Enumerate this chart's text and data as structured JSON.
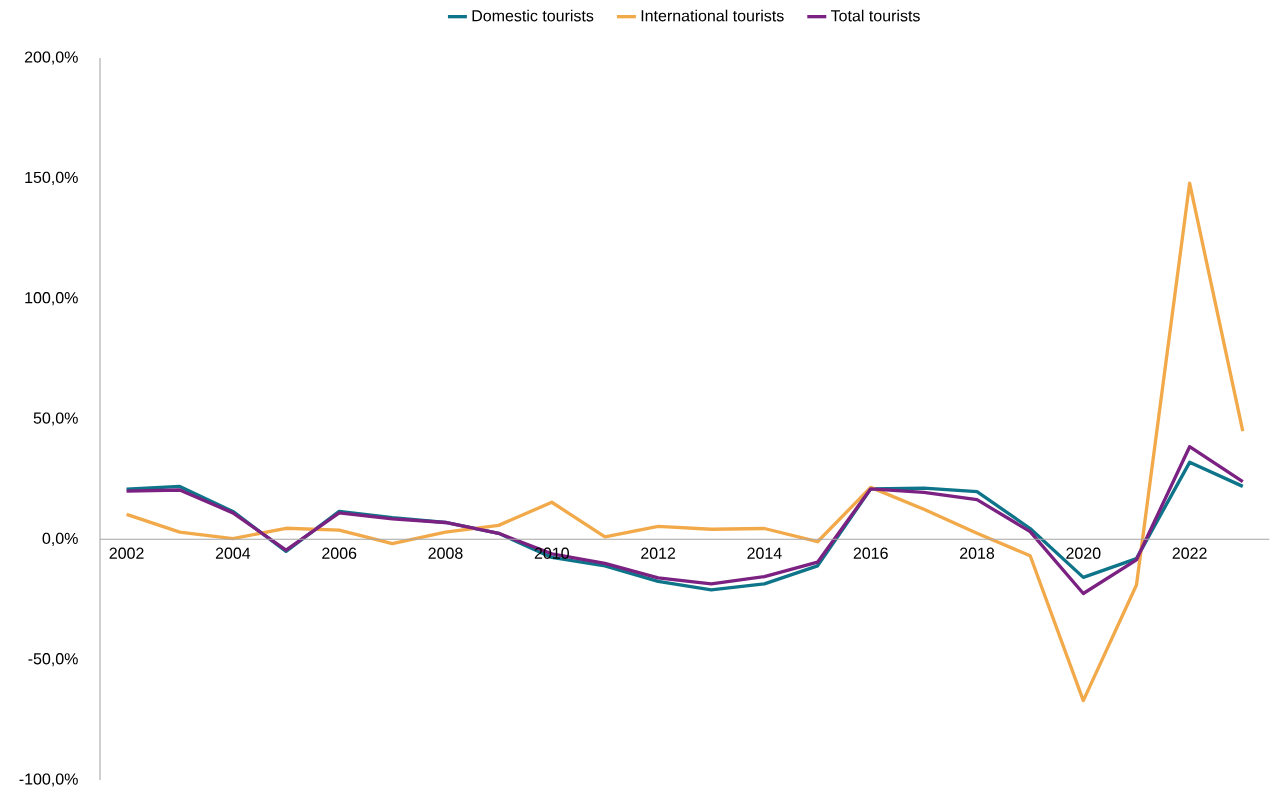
{
  "chart_data": {
    "type": "line",
    "categories": [
      "2002",
      null,
      "2004",
      null,
      "2006",
      null,
      "2008",
      null,
      "2010",
      null,
      "2012",
      null,
      "2014",
      null,
      "2016",
      null,
      "2018",
      null,
      "2020",
      null,
      "2022",
      null
    ],
    "series": [
      {
        "name": "Domestic tourists",
        "color": "#0e7489",
        "values": [
          20.8,
          22,
          11.6,
          -5,
          11.6,
          9,
          7,
          2.5,
          -7.5,
          -11,
          -17.5,
          -21,
          -18.5,
          -11,
          21,
          21.3,
          19.8,
          4.5,
          -15.8,
          -8,
          32,
          22
        ]
      },
      {
        "name": "International tourists",
        "color": "#f2a94a",
        "values": [
          10.4,
          3,
          0.3,
          4.6,
          3.8,
          -1.8,
          3,
          5.8,
          15.4,
          1,
          5.4,
          4.2,
          4.5,
          -1,
          21.6,
          12.5,
          2.5,
          -6.8,
          -67,
          -19,
          148,
          45
        ]
      },
      {
        "name": "Total tourists",
        "color": "#7a2182",
        "values": [
          20,
          20.5,
          11,
          -4.5,
          11,
          8.5,
          7,
          2.5,
          -6,
          -10,
          -16,
          -18.5,
          -15.5,
          -9.5,
          21,
          19.5,
          16.5,
          3.2,
          -22.5,
          -8.5,
          38.5,
          24
        ]
      }
    ],
    "ylim": [
      -100,
      200
    ],
    "yticks": [
      {
        "value": -100,
        "label": "-100,0%"
      },
      {
        "value": -50,
        "label": "-50,0%"
      },
      {
        "value": 0,
        "label": "0,0%"
      },
      {
        "value": 50,
        "label": "50,0%"
      },
      {
        "value": 100,
        "label": "100,0%"
      },
      {
        "value": 150,
        "label": "150,0%"
      },
      {
        "value": 200,
        "label": "200,0%"
      }
    ],
    "grid": false,
    "legend": "top",
    "marker": "none",
    "line_style": "solid"
  }
}
